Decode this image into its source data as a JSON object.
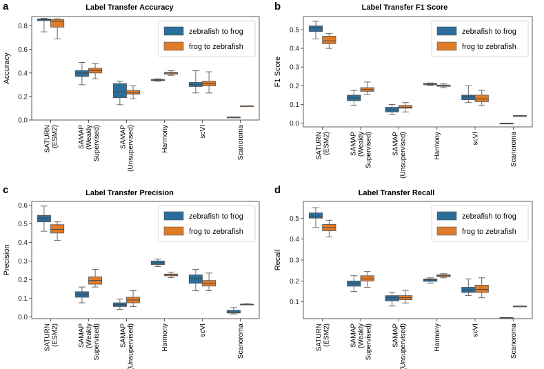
{
  "colors": {
    "series1": "#2b6e9b",
    "series2": "#e07b28",
    "axis": "#333333",
    "whisker": "#666666"
  },
  "chart_data": [
    {
      "panel": "a",
      "type": "box",
      "title": "Label Transfer Accuracy",
      "ylabel": "Accuracy",
      "ylim": [
        0,
        0.88
      ],
      "yticks": [
        "0.0",
        "0.2",
        "0.4",
        "0.6",
        "0.8"
      ],
      "categories": [
        [
          "SATURN",
          "(ESM2)"
        ],
        [
          "SAMAP",
          "(Weakly",
          "Supervised)"
        ],
        [
          "SAMAP",
          "(Unsupervised)"
        ],
        [
          "Harmony"
        ],
        [
          "scVI"
        ],
        [
          "Scanoroma"
        ]
      ],
      "legend": {
        "position": "top-right",
        "entries": [
          "zebrafish to frog",
          "frog to zebrafish"
        ]
      },
      "series": [
        {
          "name": "zebrafish to frog",
          "boxes": [
            [
              0.75,
              0.845,
              0.852,
              0.86,
              0.865
            ],
            [
              0.3,
              0.37,
              0.4,
              0.42,
              0.49
            ],
            [
              0.13,
              0.19,
              0.24,
              0.31,
              0.33
            ],
            [
              0.33,
              0.335,
              0.34,
              0.345,
              0.35
            ],
            [
              0.23,
              0.285,
              0.3,
              0.32,
              0.42
            ],
            [
              0.025,
              0.025,
              0.025,
              0.025,
              0.025
            ]
          ]
        },
        {
          "name": "frog to zebrafish",
          "boxes": [
            [
              0.69,
              0.79,
              0.84,
              0.855,
              0.86
            ],
            [
              0.35,
              0.4,
              0.42,
              0.44,
              0.48
            ],
            [
              0.18,
              0.22,
              0.23,
              0.25,
              0.29
            ],
            [
              0.38,
              0.39,
              0.4,
              0.405,
              0.42
            ],
            [
              0.23,
              0.29,
              0.31,
              0.33,
              0.41
            ],
            [
              0.12,
              0.12,
              0.12,
              0.12,
              0.12
            ]
          ]
        }
      ]
    },
    {
      "panel": "b",
      "type": "box",
      "title": "Label Transfer F1 Score",
      "ylabel": "F1 Score",
      "ylim": [
        -0.02,
        0.57
      ],
      "yticks": [
        "0.0",
        "0.1",
        "0.2",
        "0.3",
        "0.4",
        "0.5"
      ],
      "categories": [
        [
          "SATURN",
          "(ESM2)"
        ],
        [
          "SAMAP",
          "(Weakly",
          "Supervised)"
        ],
        [
          "SAMAP",
          "(Unsupervised)"
        ],
        [
          "Harmony"
        ],
        [
          "scVI"
        ],
        [
          "Scanoroma"
        ]
      ],
      "legend": {
        "position": "top-right",
        "entries": [
          "zebrafish to frog",
          "frog to zebrafish"
        ]
      },
      "series": [
        {
          "name": "zebrafish to frog",
          "boxes": [
            [
              0.45,
              0.49,
              0.51,
              0.52,
              0.545
            ],
            [
              0.095,
              0.12,
              0.135,
              0.15,
              0.175
            ],
            [
              0.045,
              0.06,
              0.07,
              0.085,
              0.1
            ],
            [
              0.2,
              0.205,
              0.21,
              0.212,
              0.215
            ],
            [
              0.11,
              0.125,
              0.14,
              0.15,
              0.2
            ],
            [
              0.0,
              0.0,
              0.0,
              0.0,
              0.0
            ]
          ]
        },
        {
          "name": "frog to zebrafish",
          "boxes": [
            [
              0.4,
              0.425,
              0.44,
              0.465,
              0.48
            ],
            [
              0.155,
              0.17,
              0.18,
              0.19,
              0.22
            ],
            [
              0.06,
              0.08,
              0.085,
              0.095,
              0.11
            ],
            [
              0.19,
              0.197,
              0.2,
              0.204,
              0.21
            ],
            [
              0.095,
              0.115,
              0.13,
              0.15,
              0.175
            ],
            [
              0.04,
              0.04,
              0.04,
              0.04,
              0.04
            ]
          ]
        }
      ]
    },
    {
      "panel": "c",
      "type": "box",
      "title": "Label Transfer Precision",
      "ylabel": "Precision",
      "ylim": [
        -0.01,
        0.62
      ],
      "yticks": [
        "0.0",
        "0.1",
        "0.2",
        "0.3",
        "0.4",
        "0.5",
        "0.6"
      ],
      "categories": [
        [
          "SATURN",
          "(ESM2)"
        ],
        [
          "SAMAP",
          "(Weakly",
          "Supervised)"
        ],
        [
          "SAMAP",
          "(Unsupervised)"
        ],
        [
          "Harmony"
        ],
        [
          "scVI"
        ],
        [
          "Scanoroma"
        ]
      ],
      "legend": {
        "position": "top-right",
        "entries": [
          "zebrafish to frog",
          "frog to zebrafish"
        ]
      },
      "series": [
        {
          "name": "zebrafish to frog",
          "boxes": [
            [
              0.46,
              0.51,
              0.53,
              0.545,
              0.595
            ],
            [
              0.075,
              0.105,
              0.12,
              0.135,
              0.16
            ],
            [
              0.04,
              0.055,
              0.065,
              0.075,
              0.095
            ],
            [
              0.27,
              0.28,
              0.29,
              0.3,
              0.31
            ],
            [
              0.14,
              0.18,
              0.205,
              0.225,
              0.255
            ],
            [
              0.015,
              0.02,
              0.025,
              0.035,
              0.05
            ]
          ]
        },
        {
          "name": "frog to zebrafish",
          "boxes": [
            [
              0.41,
              0.45,
              0.47,
              0.495,
              0.51
            ],
            [
              0.16,
              0.175,
              0.195,
              0.215,
              0.255
            ],
            [
              0.055,
              0.075,
              0.09,
              0.105,
              0.14
            ],
            [
              0.21,
              0.22,
              0.225,
              0.23,
              0.24
            ],
            [
              0.14,
              0.165,
              0.18,
              0.195,
              0.235
            ],
            [
              0.065,
              0.066,
              0.067,
              0.068,
              0.07
            ]
          ]
        }
      ]
    },
    {
      "panel": "d",
      "type": "box",
      "title": "Label Transfer Recall",
      "ylabel": "Recall",
      "ylim": [
        0.02,
        0.58
      ],
      "yticks": [
        "0.1",
        "0.2",
        "0.3",
        "0.4",
        "0.5"
      ],
      "categories": [
        [
          "SATURN",
          "(ESM2)"
        ],
        [
          "SAMAP",
          "(Weakly",
          "Supervised)"
        ],
        [
          "SAMAP",
          "(Unsupervised)"
        ],
        [
          "Harmony"
        ],
        [
          "scVI"
        ],
        [
          "Scanoroma"
        ]
      ],
      "legend": {
        "position": "top-right",
        "entries": [
          "zebrafish to frog",
          "frog to zebrafish"
        ]
      },
      "series": [
        {
          "name": "zebrafish to frog",
          "boxes": [
            [
              0.455,
              0.5,
              0.51,
              0.525,
              0.55
            ],
            [
              0.15,
              0.175,
              0.19,
              0.2,
              0.225
            ],
            [
              0.08,
              0.105,
              0.12,
              0.13,
              0.145
            ],
            [
              0.19,
              0.198,
              0.205,
              0.21,
              0.215
            ],
            [
              0.13,
              0.145,
              0.155,
              0.17,
              0.21
            ],
            [
              0.025,
              0.025,
              0.025,
              0.025,
              0.025
            ]
          ]
        },
        {
          "name": "frog to zebrafish",
          "boxes": [
            [
              0.41,
              0.44,
              0.455,
              0.47,
              0.49
            ],
            [
              0.17,
              0.2,
              0.21,
              0.225,
              0.245
            ],
            [
              0.095,
              0.11,
              0.12,
              0.13,
              0.155
            ],
            [
              0.215,
              0.22,
              0.225,
              0.23,
              0.235
            ],
            [
              0.12,
              0.145,
              0.16,
              0.18,
              0.215
            ],
            [
              0.08,
              0.08,
              0.08,
              0.08,
              0.08
            ]
          ]
        }
      ]
    }
  ]
}
